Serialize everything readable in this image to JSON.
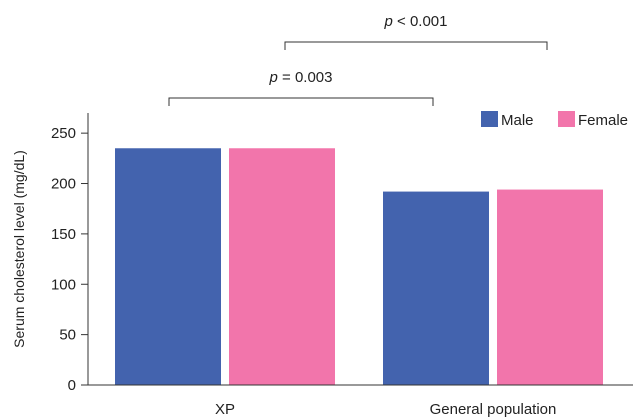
{
  "chart_data": {
    "type": "bar",
    "categories": [
      "XP",
      "General population"
    ],
    "series": [
      {
        "name": "Male",
        "color": "#4363ae",
        "values": [
          235,
          192
        ]
      },
      {
        "name": "Female",
        "color": "#f275ab",
        "values": [
          235,
          194
        ]
      }
    ],
    "ylabel": "Serum cholesterol level (mg/dL)",
    "ylim": [
      0,
      270
    ],
    "yticks": [
      0,
      50,
      100,
      150,
      200,
      250
    ],
    "grid": false,
    "legend_position": "top-right",
    "annotations": [
      {
        "p_symbol": "p",
        "rest": " = 0.003",
        "between": "XP (Male) vs General population (Male)"
      },
      {
        "p_symbol": "p",
        "rest": " < 0.001",
        "between": "XP (Female) vs General population (Female)"
      }
    ]
  }
}
